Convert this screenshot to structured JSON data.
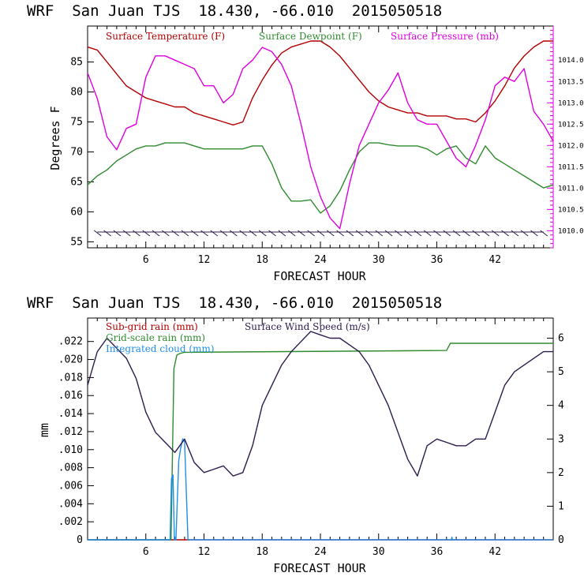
{
  "chart_data": [
    {
      "type": "line",
      "title": "WRF  San Juan TJS  18.430, -66.010  2015050518",
      "xlabel": "FORECAST HOUR",
      "ylabel": "Degrees F",
      "xlim": [
        0,
        48
      ],
      "ylim": [
        54,
        91
      ],
      "y2lim": [
        1009.6,
        1014.8
      ],
      "xticks": [
        6,
        12,
        18,
        24,
        30,
        36,
        42
      ],
      "yticks": [
        55,
        60,
        65,
        70,
        75,
        80,
        85
      ],
      "y2ticks": [
        "1010.0",
        "1010.5",
        "1011.0",
        "1011.5",
        "1012.0",
        "1012.5",
        "1013.0",
        "1013.5",
        "1014.0"
      ],
      "wind_barb_row_value": 56.5,
      "series": [
        {
          "name": "Surface Temperature (F)",
          "axis": "left",
          "color": "#b30000",
          "x": [
            0,
            1,
            2,
            3,
            4,
            5,
            6,
            7,
            8,
            9,
            10,
            11,
            12,
            13,
            14,
            15,
            16,
            17,
            18,
            19,
            20,
            21,
            22,
            23,
            24,
            25,
            26,
            27,
            28,
            29,
            30,
            31,
            32,
            33,
            34,
            35,
            36,
            37,
            38,
            39,
            40,
            41,
            42,
            43,
            44,
            45,
            46,
            47,
            48
          ],
          "y": [
            87.5,
            87,
            85,
            83,
            81,
            80,
            79,
            78.5,
            78,
            77.5,
            77.5,
            76.5,
            76,
            75.5,
            75,
            74.5,
            75,
            79,
            82,
            84.5,
            86.5,
            87.5,
            88,
            88.5,
            88.5,
            87.5,
            86,
            84,
            82,
            80,
            78.5,
            77.5,
            77,
            76.5,
            76.5,
            76,
            76,
            76,
            75.5,
            75.5,
            75,
            76.5,
            78.5,
            81,
            84,
            86,
            87.5,
            88.5,
            88.5
          ]
        },
        {
          "name": "Surface Dewpoint (F)",
          "axis": "left",
          "color": "#2e8b2e",
          "x": [
            0,
            1,
            2,
            3,
            4,
            5,
            6,
            7,
            8,
            9,
            10,
            11,
            12,
            13,
            14,
            15,
            16,
            17,
            18,
            19,
            20,
            21,
            22,
            23,
            24,
            25,
            26,
            27,
            28,
            29,
            30,
            31,
            32,
            33,
            34,
            35,
            36,
            37,
            38,
            39,
            40,
            41,
            42,
            43,
            44,
            45,
            46,
            47,
            48
          ],
          "y": [
            64.5,
            66,
            67,
            68.5,
            69.5,
            70.5,
            71,
            71,
            71.5,
            71.5,
            71.5,
            71,
            70.5,
            70.5,
            70.5,
            70.5,
            70.5,
            71,
            71,
            68,
            64,
            61.8,
            61.8,
            62,
            59.8,
            61,
            63.5,
            67,
            70,
            71.5,
            71.5,
            71.2,
            71,
            71,
            71,
            70.5,
            69.5,
            70.5,
            71,
            69,
            68,
            71,
            69,
            68,
            67,
            66,
            65,
            64,
            64.5
          ]
        },
        {
          "name": "Surface Pressure (mb)",
          "axis": "right",
          "color": "#e000e0",
          "x": [
            0,
            1,
            2,
            3,
            4,
            5,
            6,
            7,
            8,
            9,
            10,
            11,
            12,
            13,
            14,
            15,
            16,
            17,
            18,
            19,
            20,
            21,
            22,
            23,
            24,
            25,
            26,
            27,
            28,
            29,
            30,
            31,
            32,
            33,
            34,
            35,
            36,
            37,
            38,
            39,
            40,
            41,
            42,
            43,
            44,
            45,
            46,
            47,
            48
          ],
          "y": [
            1013.7,
            1013.1,
            1012.2,
            1011.9,
            1012.4,
            1012.5,
            1013.6,
            1014.1,
            1014.1,
            1014.0,
            1013.9,
            1013.8,
            1013.4,
            1013.4,
            1013.0,
            1013.2,
            1013.8,
            1014.0,
            1014.3,
            1014.2,
            1013.9,
            1013.4,
            1012.5,
            1011.5,
            1010.8,
            1010.3,
            1010.05,
            1011.1,
            1012.0,
            1012.5,
            1013.0,
            1013.3,
            1013.7,
            1013.0,
            1012.6,
            1012.5,
            1012.5,
            1012.1,
            1011.7,
            1011.5,
            1012.0,
            1012.6,
            1013.4,
            1013.6,
            1013.5,
            1013.8,
            1012.8,
            1012.5,
            1012.1
          ]
        }
      ]
    },
    {
      "type": "line",
      "title": "WRF  San Juan TJS  18.430, -66.010  2015050518",
      "xlabel": "FORECAST HOUR",
      "ylabel": "mm",
      "xlim": [
        0,
        48
      ],
      "ylim": [
        0,
        0.0246
      ],
      "y2lim": [
        0,
        6.6
      ],
      "xticks": [
        6,
        12,
        18,
        24,
        30,
        36,
        42
      ],
      "yticks": [
        0,
        0.002,
        0.004,
        0.006,
        0.008,
        0.01,
        0.012,
        0.014,
        0.016,
        0.018,
        0.02,
        0.022
      ],
      "ytick_labels": [
        "0",
        ".002",
        ".004",
        ".006",
        ".008",
        ".010",
        ".012",
        ".014",
        ".016",
        ".018",
        ".020",
        ".022"
      ],
      "y2ticks": [
        0,
        1,
        2,
        3,
        4,
        5,
        6
      ],
      "series": [
        {
          "name": "Sub-grid rain (mm)",
          "axis": "left",
          "color": "#b30000",
          "x": [
            0,
            48
          ],
          "y": [
            0,
            0
          ]
        },
        {
          "name": "Grid-scale rain (mm)",
          "axis": "left",
          "color": "#2e8b2e",
          "x": [
            0,
            8.6,
            8.9,
            9.2,
            9.6,
            10,
            37,
            37.4,
            48
          ],
          "y": [
            0,
            0,
            0.019,
            0.0205,
            0.0207,
            0.0208,
            0.021,
            0.0218,
            0.0218
          ]
        },
        {
          "name": "Integrated cloud (mm)",
          "axis": "left",
          "color": "#1f8fe8",
          "x": [
            0,
            8.5,
            8.65,
            8.8,
            8.95,
            9.1,
            9.4,
            9.6,
            9.8,
            10.0,
            10.2,
            10.35,
            37.5,
            37.55,
            37.6,
            48
          ],
          "y": [
            0,
            0,
            0.0068,
            0.0072,
            0,
            0,
            0.0088,
            0.0102,
            0.0112,
            0.0109,
            0.0045,
            0,
            0,
            0.0003,
            0,
            0
          ]
        },
        {
          "name": "Surface Wind Speed (m/s)",
          "axis": "right",
          "color": "#2d1b4d",
          "x": [
            0,
            1,
            2,
            3,
            4,
            5,
            6,
            7,
            8,
            9,
            10,
            11,
            12,
            13,
            14,
            15,
            16,
            17,
            18,
            19,
            20,
            21,
            22,
            23,
            24,
            25,
            26,
            27,
            28,
            29,
            30,
            31,
            32,
            33,
            34,
            35,
            36,
            37,
            38,
            39,
            40,
            41,
            42,
            43,
            44,
            45,
            46,
            47,
            48
          ],
          "y": [
            4.6,
            5.6,
            6.0,
            5.7,
            5.4,
            4.8,
            3.8,
            3.2,
            2.9,
            2.6,
            3.0,
            2.3,
            2.0,
            2.1,
            2.2,
            1.9,
            2.0,
            2.8,
            4.0,
            4.6,
            5.2,
            5.6,
            5.9,
            6.2,
            6.1,
            6.0,
            6.0,
            5.8,
            5.6,
            5.2,
            4.6,
            4.0,
            3.2,
            2.4,
            1.9,
            2.8,
            3.0,
            2.9,
            2.8,
            2.8,
            3.0,
            3.0,
            3.8,
            4.6,
            5.0,
            5.2,
            5.4,
            5.6,
            5.6
          ]
        }
      ]
    }
  ]
}
